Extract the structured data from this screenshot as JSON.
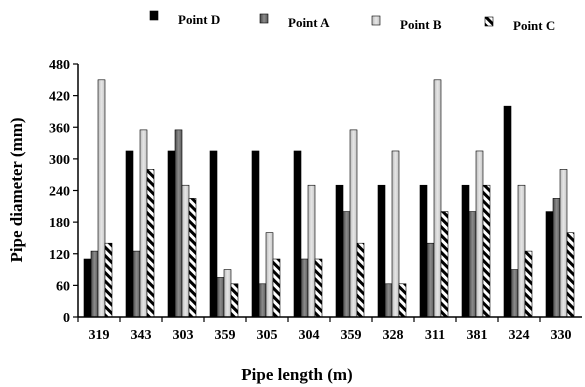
{
  "chart_data": {
    "type": "bar",
    "xlabel": "Pipe length (m)",
    "ylabel": "Pipe diameter (mm)",
    "categories": [
      "319",
      "343",
      "303",
      "359",
      "305",
      "304",
      "359",
      "328",
      "311",
      "381",
      "324",
      "330"
    ],
    "ylim": [
      0,
      480
    ],
    "yticks": [
      0,
      60,
      120,
      180,
      240,
      300,
      360,
      420,
      480
    ],
    "legend_position": "top",
    "grid": false,
    "series": [
      {
        "name": "Point D",
        "pattern": "solid-black",
        "values": [
          110,
          315,
          315,
          315,
          315,
          315,
          250,
          250,
          250,
          250,
          400,
          200
        ]
      },
      {
        "name": "Point A",
        "pattern": "dark-gray",
        "values": [
          125,
          125,
          355,
          75,
          63,
          110,
          200,
          63,
          140,
          200,
          90,
          225
        ]
      },
      {
        "name": "Point B",
        "pattern": "light-gray",
        "values": [
          450,
          355,
          250,
          90,
          160,
          250,
          355,
          315,
          450,
          315,
          250,
          280
        ]
      },
      {
        "name": "Point C",
        "pattern": "diagonal-stripes",
        "values": [
          140,
          280,
          225,
          63,
          110,
          110,
          140,
          63,
          200,
          250,
          125,
          160
        ]
      }
    ],
    "colors": {
      "point_d": "#000000",
      "point_a": "#6e6e6e",
      "point_b": "#cfcfcf",
      "point_c_stripe": "#000000"
    }
  }
}
